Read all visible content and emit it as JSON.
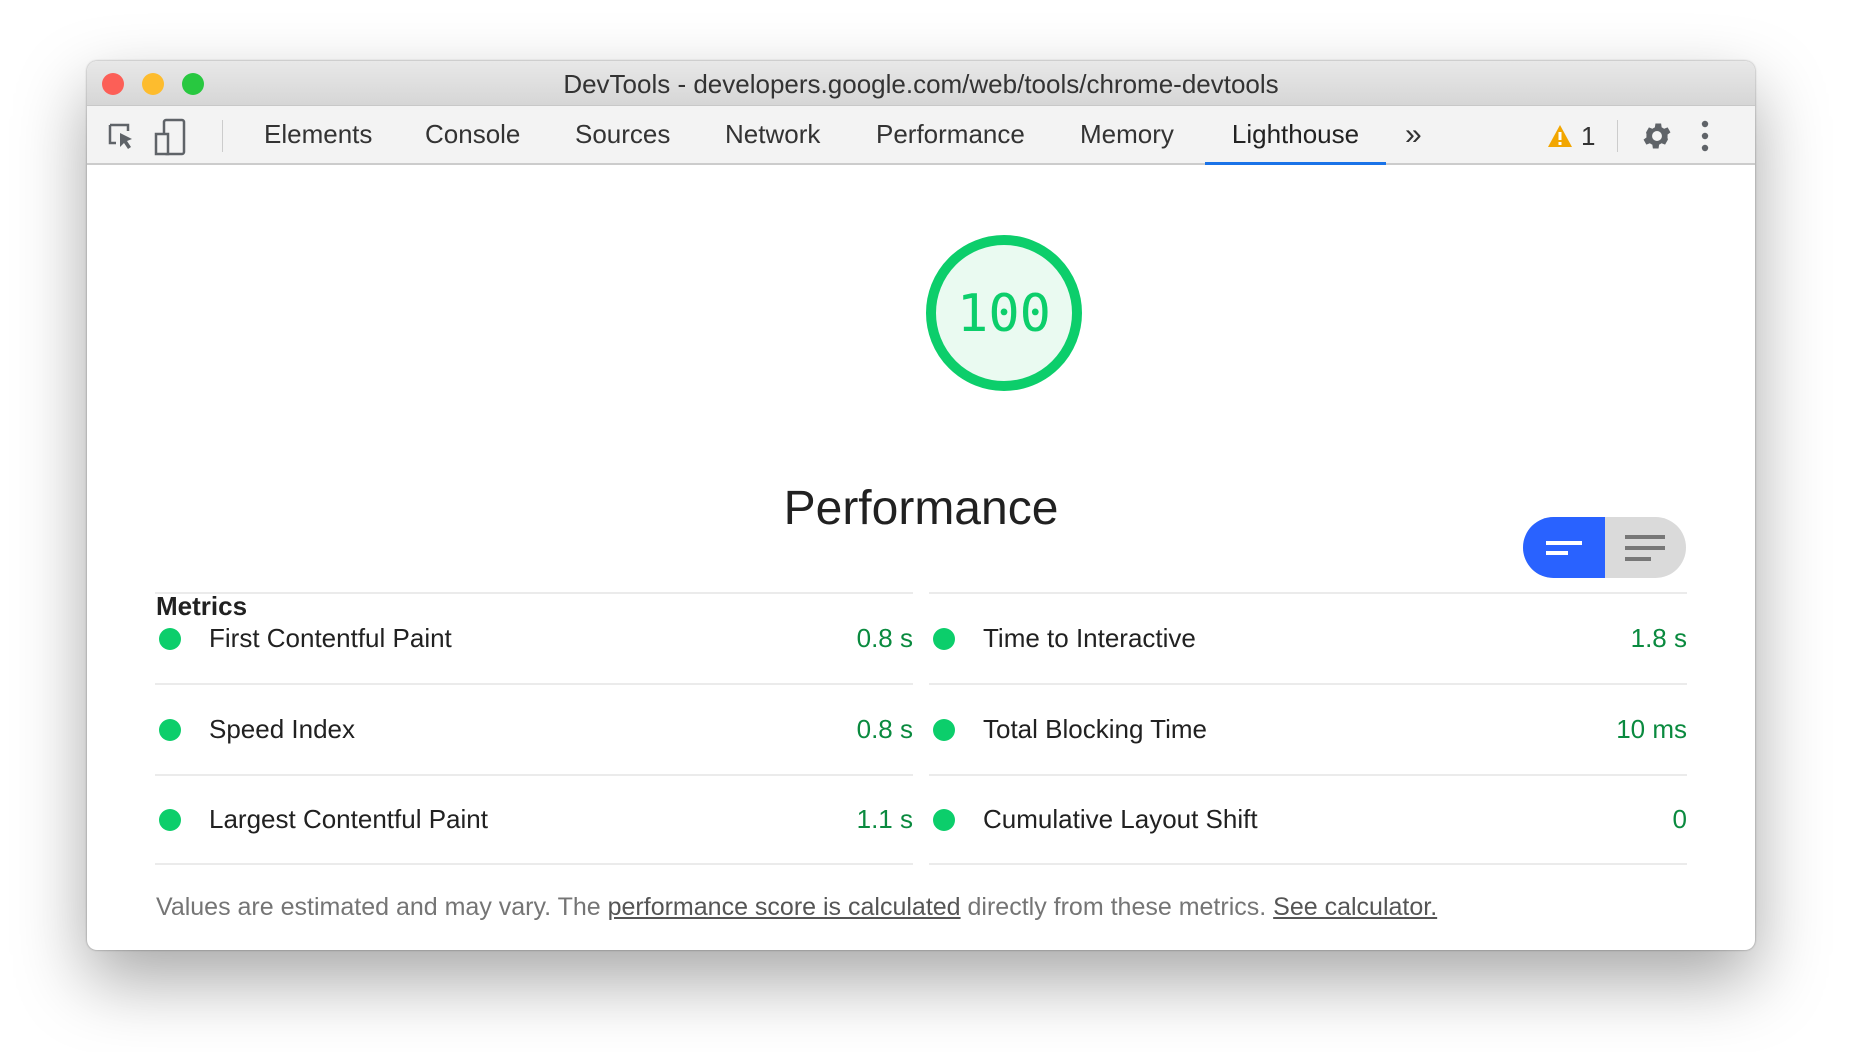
{
  "window": {
    "title": "DevTools - developers.google.com/web/tools/chrome-devtools"
  },
  "toolbar": {
    "tabs": [
      "Elements",
      "Console",
      "Sources",
      "Network",
      "Performance",
      "Memory",
      "Lighthouse"
    ],
    "active_tab": "Lighthouse",
    "warning_count": "1"
  },
  "score": {
    "value": "100",
    "category": "Performance",
    "color": "#0cce6b"
  },
  "metrics": {
    "heading": "Metrics",
    "left": [
      {
        "label": "First Contentful Paint",
        "value": "0.8 s"
      },
      {
        "label": "Speed Index",
        "value": "0.8 s"
      },
      {
        "label": "Largest Contentful Paint",
        "value": "1.1 s"
      }
    ],
    "right": [
      {
        "label": "Time to Interactive",
        "value": "1.8 s"
      },
      {
        "label": "Total Blocking Time",
        "value": "10 ms"
      },
      {
        "label": "Cumulative Layout Shift",
        "value": "0"
      }
    ]
  },
  "footer": {
    "text1": "Values are estimated and may vary. The ",
    "link1": "performance score is calculated",
    "text2": " directly from these metrics. ",
    "link2": "See calculator."
  },
  "colors": {
    "accent": "#1a73e8",
    "toggle_active": "#2962ff",
    "pass": "#0cce6b"
  }
}
